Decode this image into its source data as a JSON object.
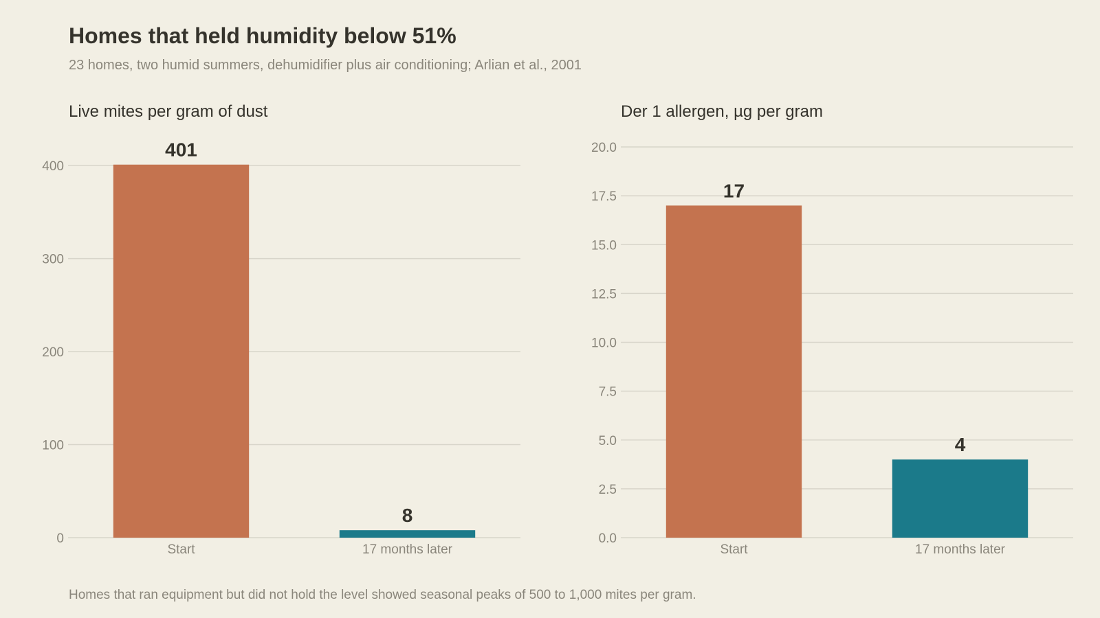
{
  "title": "Homes that held humidity below 51%",
  "subtitle": "23 homes, two humid summers, dehumidifier plus air conditioning; Arlian et al., 2001",
  "footnote": "Homes that ran equipment but did not hold the level showed seasonal peaks of 500 to 1,000 mites per gram.",
  "colors": {
    "start": "#c4734f",
    "later": "#1b7a8a",
    "grid": "#d8d5ca",
    "muted_text": "#8a867b",
    "dark_text": "#35332c",
    "background": "#f2efe4"
  },
  "chart_data": [
    {
      "type": "bar",
      "title": "Live mites per gram of dust",
      "categories": [
        "Start",
        "17 months later"
      ],
      "values": [
        401,
        8
      ],
      "value_labels": [
        "401",
        "8"
      ],
      "ylim": [
        0,
        420
      ],
      "yticks": [
        0,
        100,
        200,
        300,
        400
      ],
      "ytick_labels": [
        "0",
        "100",
        "200",
        "300",
        "400"
      ],
      "grid": true,
      "bar_colors": [
        "#c4734f",
        "#1b7a8a"
      ]
    },
    {
      "type": "bar",
      "title": "Der 1 allergen, µg per gram",
      "categories": [
        "Start",
        "17 months later"
      ],
      "values": [
        17,
        4
      ],
      "value_labels": [
        "17",
        "4"
      ],
      "ylim": [
        0,
        20
      ],
      "yticks": [
        0,
        2.5,
        5,
        7.5,
        10,
        12.5,
        15,
        17.5,
        20
      ],
      "ytick_labels": [
        "0.0",
        "2.5",
        "5.0",
        "7.5",
        "10.0",
        "12.5",
        "15.0",
        "17.5",
        "20.0"
      ],
      "grid": true,
      "bar_colors": [
        "#c4734f",
        "#1b7a8a"
      ]
    }
  ]
}
